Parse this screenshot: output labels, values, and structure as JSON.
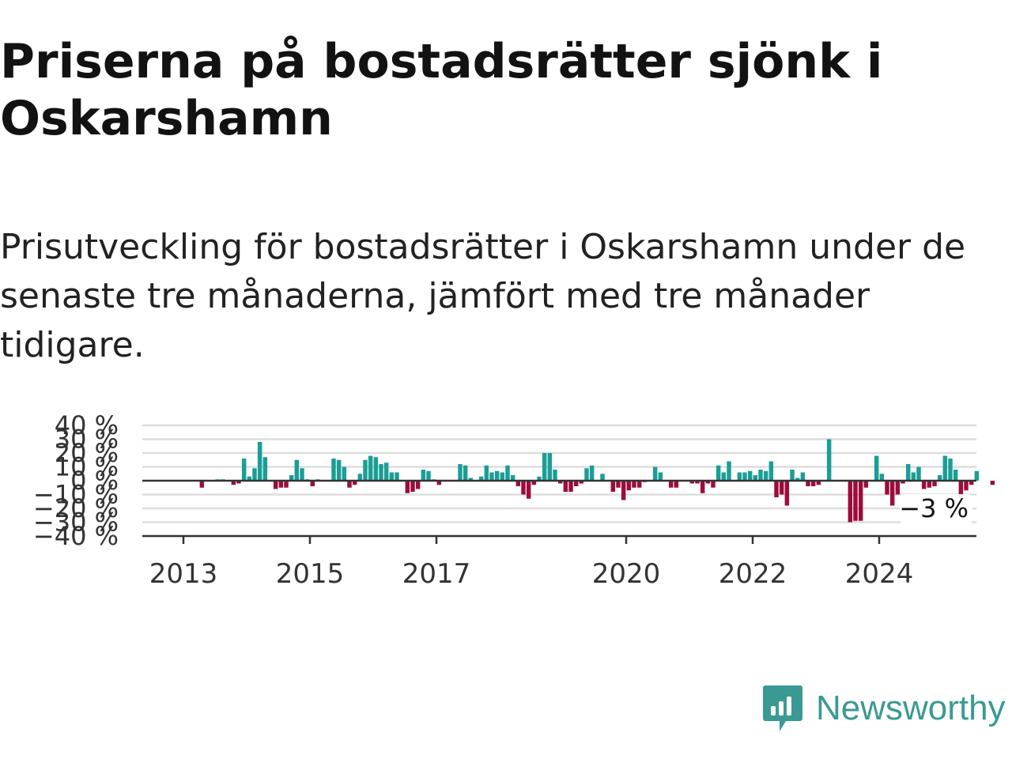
{
  "header": {
    "title": "Priserna på bostadsrätter sjönk i Oskarshamn",
    "subtitle": "Prisutveckling för bostadsrätter i Oskarshamn under de senaste tre månaderna, jämfört med tre månader tidigare."
  },
  "brand": {
    "name": "Newsworthy",
    "icon": "newsworthy-logo-icon"
  },
  "colors": {
    "positive": "#1a9e96",
    "negative": "#9c0c3c",
    "axis": "#333333",
    "grid": "#dddddd",
    "brand": "#3a9a93"
  },
  "chart_data": {
    "type": "bar",
    "start": "2012-01",
    "frequency": "monthly",
    "ylim": [
      -40,
      40
    ],
    "yticks": [
      -40,
      -30,
      -20,
      -10,
      0,
      10,
      20,
      30,
      40
    ],
    "ytick_labels": [
      "−40 %",
      "−30 %",
      "−20 %",
      "−10 %",
      "0 %",
      "10 %",
      "20 %",
      "30 %",
      "40 %"
    ],
    "xticks": [
      "2013",
      "2015",
      "2017",
      "2020",
      "2022",
      "2024"
    ],
    "last_value_label": "−3 %",
    "grid": true,
    "values": [
      null,
      null,
      null,
      null,
      null,
      null,
      null,
      null,
      null,
      null,
      null,
      null,
      0,
      0,
      0,
      -5,
      0,
      0,
      1,
      1,
      0,
      -3,
      -2,
      16,
      3,
      9,
      28,
      17,
      0,
      -6,
      -5,
      -5,
      4,
      15,
      9,
      1,
      -4,
      1,
      0,
      0,
      16,
      15,
      10,
      -5,
      -3,
      5,
      15,
      18,
      17,
      12,
      13,
      6,
      6,
      0,
      -9,
      -8,
      -6,
      8,
      7,
      1,
      -3,
      0,
      0,
      0,
      12,
      11,
      2,
      0,
      3,
      11,
      6,
      7,
      6,
      11,
      4,
      -4,
      -10,
      -13,
      -3,
      3,
      20,
      20,
      8,
      -2,
      -8,
      -8,
      -4,
      -2,
      9,
      11,
      0,
      5,
      0,
      -8,
      -5,
      -14,
      -7,
      -5,
      -5,
      -1,
      0,
      10,
      6,
      0,
      -5,
      -5,
      0,
      0,
      -2,
      -2,
      -9,
      -2,
      -5,
      11,
      6,
      14,
      0,
      6,
      6,
      7,
      4,
      8,
      7,
      14,
      -12,
      -10,
      -18,
      8,
      2,
      6,
      -4,
      -4,
      -3,
      0,
      30,
      0,
      0,
      0,
      -30,
      -29,
      -29,
      -5,
      0,
      18,
      5,
      -10,
      -18,
      -10,
      -2,
      12,
      6,
      10,
      -6,
      -5,
      -4,
      4,
      18,
      16,
      8,
      -12,
      -7,
      -3,
      7,
      0,
      0,
      -3,
      0,
      0
    ]
  }
}
